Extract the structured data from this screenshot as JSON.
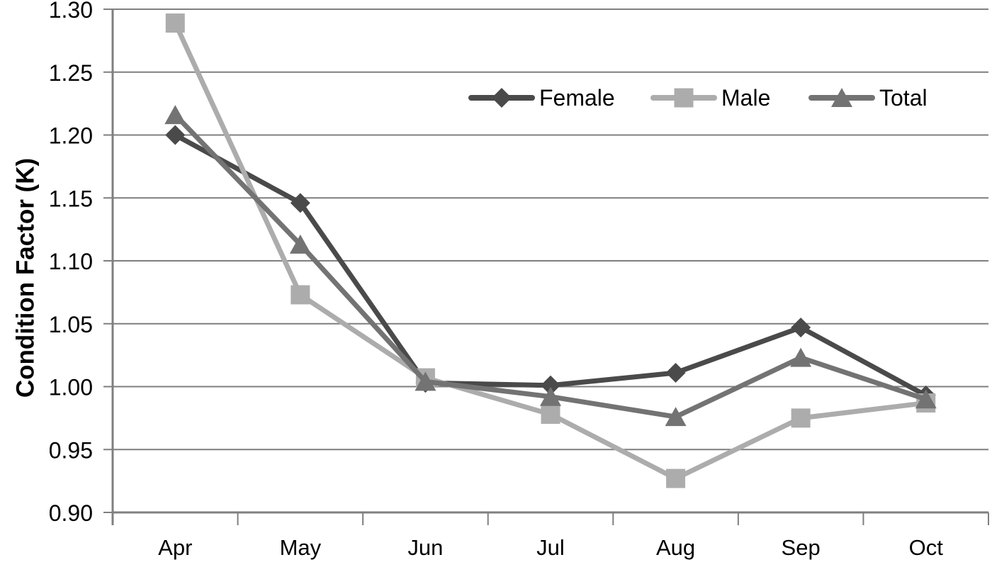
{
  "chart_data": {
    "type": "line",
    "title": "",
    "xlabel": "",
    "ylabel": "Condition Factor (K)",
    "categories": [
      "Apr",
      "May",
      "Jun",
      "Jul",
      "Aug",
      "Sep",
      "Oct"
    ],
    "series": [
      {
        "name": "Female",
        "marker": "diamond",
        "color": "#4a4a4a",
        "values": [
          1.2,
          1.146,
          1.003,
          1.001,
          1.011,
          1.047,
          0.993
        ]
      },
      {
        "name": "Male",
        "marker": "square",
        "color": "#acacac",
        "values": [
          1.289,
          1.073,
          1.007,
          0.978,
          0.927,
          0.975,
          0.987
        ]
      },
      {
        "name": "Total",
        "marker": "triangle",
        "color": "#737373",
        "values": [
          1.216,
          1.113,
          1.004,
          0.992,
          0.976,
          1.023,
          0.99
        ]
      }
    ],
    "ylim": [
      0.9,
      1.3
    ],
    "y_tick_step": 0.05,
    "y_ticks": [
      "0.90",
      "0.95",
      "1.00",
      "1.05",
      "1.10",
      "1.15",
      "1.20",
      "1.25",
      "1.30"
    ],
    "grid": true,
    "legend_position": "top-right-inside",
    "colors": {
      "grid": "#7f7f7f",
      "axis": "#7f7f7f",
      "text": "#000000",
      "background": "#ffffff"
    }
  }
}
